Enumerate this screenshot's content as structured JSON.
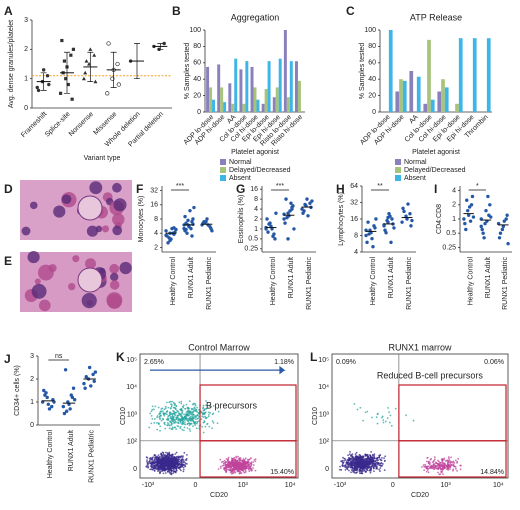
{
  "images": [
    {
      "label": "D"
    },
    {
      "label": "E"
    }
  ],
  "chart_data": [
    {
      "type": "dot",
      "panel_label": "A",
      "ylabel": "Avg. dense granules/platelet",
      "xlabel": "Variant type",
      "categories": [
        "Frameshift",
        "Splice-site",
        "Nonsense",
        "Missense",
        "Whole deletion",
        "Partial deletion"
      ],
      "points": [
        [
          0.7,
          0.9,
          1.1,
          0.6,
          1.3,
          0.8
        ],
        [
          0.5,
          1,
          1.8,
          2.3,
          1.4,
          0.3,
          1.2,
          0.8,
          2,
          1.6
        ],
        [
          1,
          1.5,
          1.8,
          1.2,
          2,
          0.9,
          1.6
        ],
        [
          0.5,
          1,
          1.5,
          2.2,
          1.3,
          0.8
        ],
        [
          1.6
        ],
        [
          2.1,
          2,
          2.2
        ]
      ],
      "means": [
        0.9,
        1.2,
        1.4,
        1.3,
        1.6,
        2.1
      ],
      "errors": [
        0.3,
        0.7,
        0.5,
        0.6,
        0.6,
        0.1
      ],
      "markers": [
        "circle",
        "square",
        "triangle",
        "open-circle",
        "none",
        "none"
      ],
      "ref_line": 1.1,
      "ref_color": "#f0a020",
      "color": "#333333",
      "ylim": [
        0,
        3
      ],
      "yticks": [
        0,
        1,
        2,
        3
      ],
      "log": false
    },
    {
      "type": "bar",
      "panel_label": "B",
      "title": "Aggregation",
      "ylabel": "% Samples tested",
      "xlabel": "Platelet agonist",
      "categories": [
        "ADP lo-dose",
        "ADP hi-dose",
        "AA",
        "Col lo-dose",
        "Col hi-dose",
        "Epi lo-dose",
        "Epi hi-dose",
        "Risto lo-dose",
        "Risto hi-dose"
      ],
      "series": [
        {
          "name": "Normal",
          "color": "#8a80bb",
          "values": [
            55,
            58,
            35,
            52,
            55,
            10,
            18,
            100,
            62
          ]
        },
        {
          "name": "Delayed/Decreased",
          "color": "#a8c47c",
          "values": [
            30,
            30,
            10,
            10,
            30,
            28,
            30,
            18,
            38
          ]
        },
        {
          "name": "Absent",
          "color": "#3db5e6",
          "values": [
            15,
            12,
            65,
            62,
            15,
            62,
            65,
            62,
            0
          ]
        }
      ],
      "ylim": [
        0,
        100
      ],
      "yticks": [
        0,
        20,
        40,
        60,
        80,
        100
      ]
    },
    {
      "type": "bar",
      "panel_label": "C",
      "title": "ATP Release",
      "ylabel": "% Samples tested",
      "xlabel": "Platelet agonist",
      "categories": [
        "ADP lo-dose",
        "ADP hi-dose",
        "AA",
        "Col lo-dose",
        "Col hi-dose",
        "Epi lo-dose",
        "Epi hi-dose",
        "Thrombin"
      ],
      "series": [
        {
          "name": "Normal",
          "color": "#8a80bb",
          "values": [
            0,
            25,
            50,
            10,
            25,
            0,
            0,
            0
          ]
        },
        {
          "name": "Delayed/Decreased",
          "color": "#a8c47c",
          "values": [
            0,
            40,
            0,
            88,
            40,
            10,
            0,
            0
          ]
        },
        {
          "name": "Absent",
          "color": "#3db5e6",
          "values": [
            100,
            38,
            43,
            15,
            30,
            90,
            90,
            90
          ]
        }
      ],
      "ylim": [
        0,
        100
      ],
      "yticks": [
        0,
        20,
        40,
        60,
        80,
        100
      ]
    },
    {
      "type": "dot",
      "panel_label": "F",
      "ylabel": "Monocytes (%)",
      "annotation": "***",
      "categories": [
        "Healthy Control",
        "RUNX1 Adult",
        "RUNX1 Pediatric"
      ],
      "points": [
        [
          4.5,
          4,
          3.8,
          3.5,
          3,
          4.2,
          2.5,
          5,
          4.8,
          3.2,
          4,
          3.6,
          2.8,
          5.2
        ],
        [
          5,
          6,
          7,
          4.5,
          5.5,
          8,
          6.5,
          12,
          14,
          4,
          5,
          6,
          7.5,
          3.5,
          9,
          5.8,
          6.2,
          4.8
        ],
        [
          6,
          7,
          5.5,
          6.5,
          8,
          5,
          7,
          6,
          4.5,
          6.8
        ]
      ],
      "means": [
        4,
        6,
        6.2
      ],
      "color": "#2457a6",
      "ylim": [
        1.6,
        40
      ],
      "yticks": [
        2,
        4,
        8,
        16,
        32
      ],
      "log": true
    },
    {
      "type": "dot",
      "panel_label": "G",
      "ylabel": "Eosinophils (%)",
      "annotation": "***",
      "categories": [
        "Healthy Control",
        "RUNX1 Adult",
        "RUNX1 Pediatric"
      ],
      "points": [
        [
          1,
          1.5,
          0.7,
          2,
          1.2,
          0.5,
          0.8,
          1,
          3,
          1.4,
          0.6,
          1.1
        ],
        [
          2,
          3,
          4,
          1.5,
          2.5,
          5,
          8,
          3.5,
          1,
          2.2,
          6,
          2.8,
          0.5,
          4.5
        ],
        [
          4,
          5,
          6,
          3,
          8,
          4.5,
          3.5,
          2.5,
          7,
          5.5
        ]
      ],
      "means": [
        1.1,
        2.6,
        4.6
      ],
      "color": "#2457a6",
      "ylim": [
        0.2,
        20
      ],
      "yticks": [
        0.25,
        0.5,
        1,
        2,
        4,
        8,
        16
      ],
      "log": true
    },
    {
      "type": "dot",
      "panel_label": "H",
      "ylabel": "Lymphocytes (%)",
      "annotation": "**",
      "categories": [
        "Healthy Control",
        "RUNX1 Adult",
        "RUNX1 Pediatric"
      ],
      "points": [
        [
          8,
          10,
          12,
          6,
          9,
          11,
          14,
          7,
          16,
          8.5,
          5,
          10
        ],
        [
          12,
          14,
          16,
          10,
          20,
          13,
          9,
          18,
          11,
          15,
          6,
          12.5,
          17
        ],
        [
          14,
          18,
          20,
          25,
          16,
          12,
          22,
          30,
          15
        ]
      ],
      "means": [
        9.5,
        13,
        17
      ],
      "color": "#2457a6",
      "ylim": [
        4,
        64
      ],
      "yticks": [
        4,
        8,
        16,
        32,
        64
      ],
      "log": true
    },
    {
      "type": "dot",
      "panel_label": "I",
      "ylabel": "CD4:CD8",
      "annotation": "*",
      "categories": [
        "Healthy Control",
        "RUNX1 Adult",
        "RUNX1 Pediatric"
      ],
      "points": [
        [
          1,
          1.5,
          2,
          0.8,
          1.2,
          3,
          0.6,
          1.8,
          1.1,
          2.5,
          0.9
        ],
        [
          1,
          0.8,
          1.2,
          0.6,
          1.5,
          2,
          0.5,
          0.9,
          1.1,
          0.4,
          3,
          0.7
        ],
        [
          0.8,
          0.6,
          1,
          0.4,
          0.7,
          1.2,
          0.5,
          0.9,
          0.3
        ]
      ],
      "means": [
        1.3,
        0.95,
        0.75
      ],
      "color": "#2457a6",
      "ylim": [
        0.2,
        5
      ],
      "yticks": [
        0.25,
        0.5,
        1,
        2,
        4
      ],
      "log": true
    },
    {
      "type": "dot",
      "panel_label": "J",
      "ylabel": "CD34+ cells (%)",
      "annotation": "ns",
      "categories": [
        "Healthy Control",
        "RUNX1 Adult",
        "RUNX1 Pediatric"
      ],
      "points": [
        [
          1,
          1.2,
          0.8,
          1.5,
          0.9,
          1.1,
          1.3,
          0.7,
          1,
          1.4
        ],
        [
          0.8,
          1,
          1.2,
          0.5,
          0.9,
          1.6,
          2.4,
          0.7,
          1.1,
          0.6,
          1.3
        ],
        [
          1.8,
          2,
          2.2,
          1.6,
          2.5,
          1.9,
          2.1,
          1.7,
          2.3
        ]
      ],
      "means": [
        1.05,
        0.95,
        2
      ],
      "color": "#2457a6",
      "ylim": [
        0,
        3
      ],
      "yticks": [
        0,
        1,
        2,
        3
      ],
      "log": false
    },
    {
      "type": "flow",
      "panel_label": "K",
      "title": "Control Marrow",
      "xlabel": "CD20",
      "ylabel": "CD10",
      "quadrant_labels": [
        "2.65%",
        "1.18%",
        "15.40%"
      ],
      "gate_label": "B precursors",
      "xtick_labels": [
        "-10³",
        "0",
        "10³",
        "10⁴"
      ],
      "ytick_labels": [
        "10⁵",
        "10⁴",
        "10³",
        "10²",
        "0"
      ]
    },
    {
      "type": "flow",
      "panel_label": "L",
      "title": "RUNX1 marrow",
      "xlabel": "CD20",
      "ylabel": "CD10",
      "quadrant_labels": [
        "0.09%",
        "0.06%",
        "14.84%"
      ],
      "gate_label": "Reduced B-cell precursors",
      "xtick_labels": [
        "-10³",
        "0",
        "10³",
        "10⁴"
      ],
      "ytick_labels": [
        "10⁵",
        "10⁴",
        "10³",
        "10²",
        "0"
      ]
    }
  ]
}
